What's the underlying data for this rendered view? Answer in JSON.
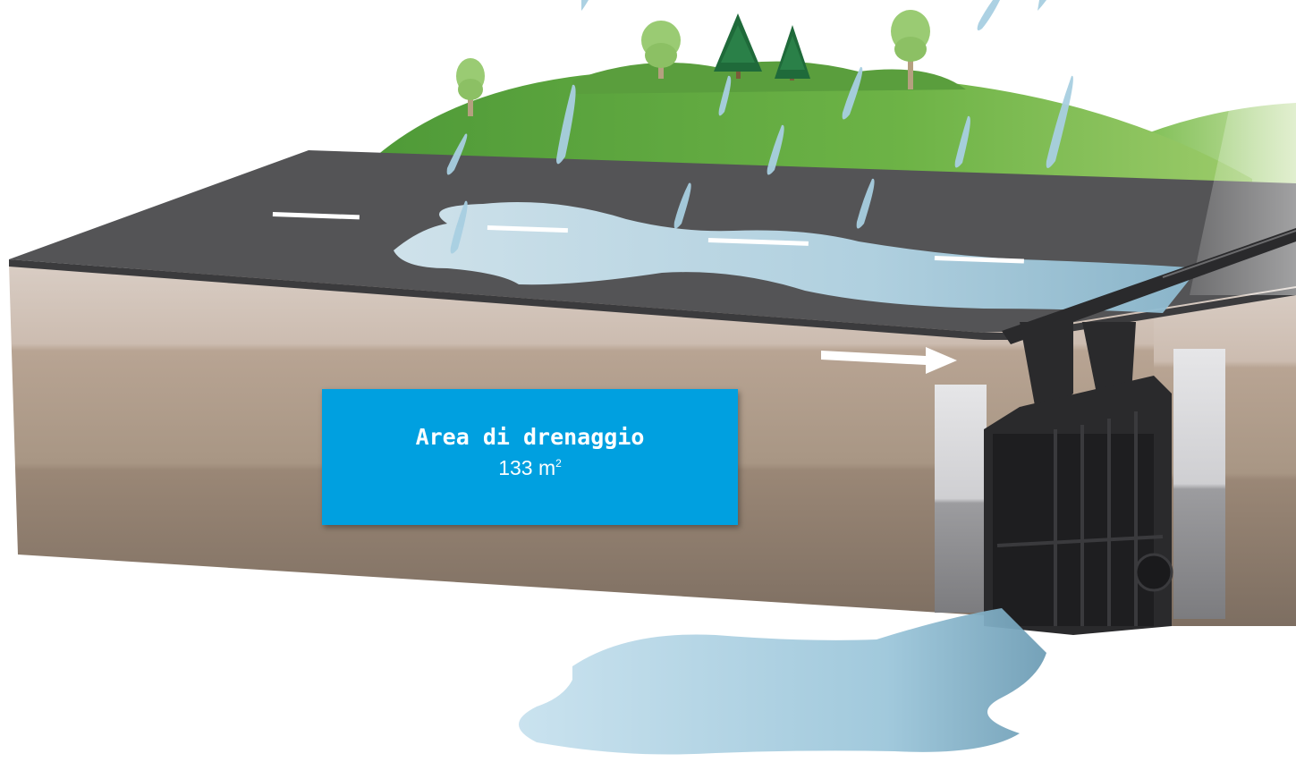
{
  "info_box": {
    "title": "Area di drenaggio",
    "value": "133 m",
    "unit_superscript": "2"
  },
  "colors": {
    "box_fill": "#00a0e0",
    "box_text": "#ffffff",
    "asphalt": "#535355",
    "soil_top": "#d8cbc2",
    "soil_mid": "#ad9b8a",
    "soil_deep": "#8a7a6c",
    "hill": "#6fb64a",
    "water": "#a8d3e6",
    "drain_body": "#2a2a2c"
  },
  "icons": [
    "rain-drop-icon",
    "flow-arrow-icon",
    "tree-icon",
    "drainage-channel-icon"
  ]
}
